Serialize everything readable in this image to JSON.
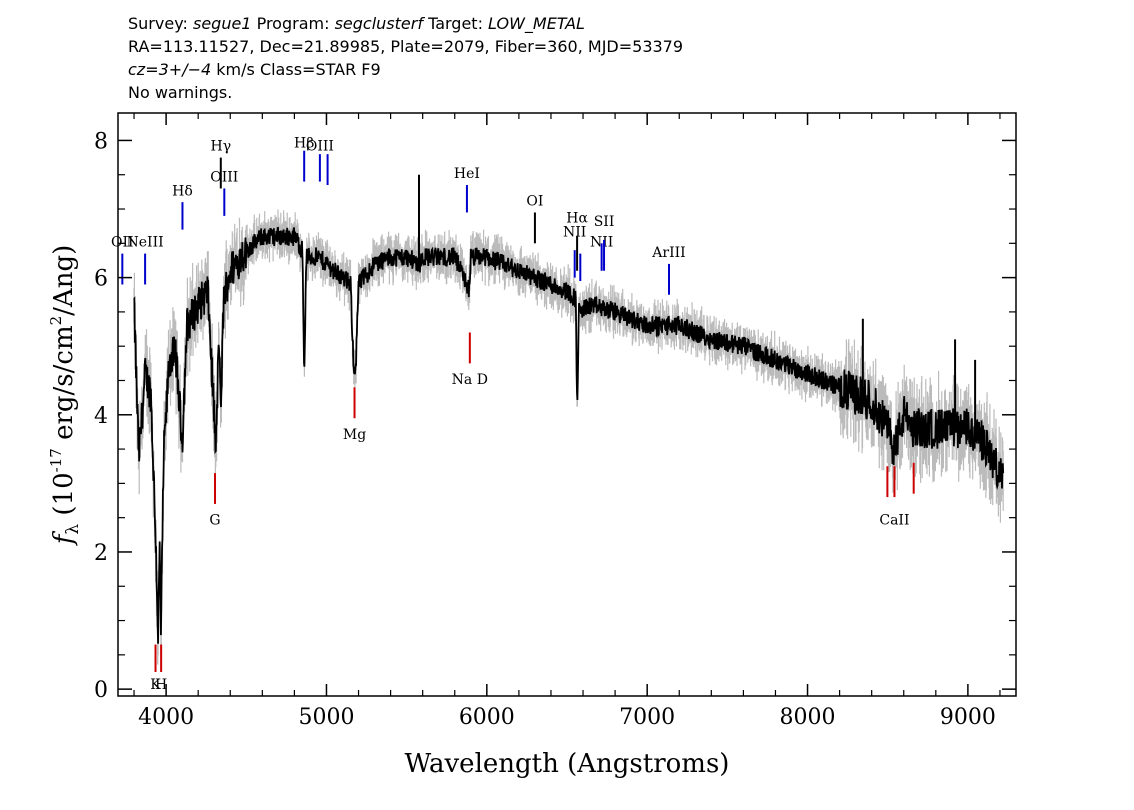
{
  "header": {
    "survey_label": "Survey:",
    "survey": "segue1",
    "program_label": "Program:",
    "program": "segclusterf",
    "target_label": "Target:",
    "target": "LOW_METAL",
    "line2": "RA=113.11527, Dec=21.89985, Plate=2079, Fiber=360, MJD=53379",
    "cz_label": "cz=3+/−4",
    "cz_unit": "km/s",
    "class_text": "Class=STAR F9",
    "warnings": "No warnings."
  },
  "chart_data": {
    "type": "line",
    "xlabel": "Wavelength (Angstroms)",
    "ylabel_pre": "f",
    "ylabel_sub": "λ",
    "ylabel_mid": " (10",
    "ylabel_exp": "-17",
    "ylabel_post": " erg/s/cm",
    "ylabel_exp2": "2",
    "ylabel_end": "/Ang)",
    "xlim": [
      3700,
      9300
    ],
    "ylim": [
      -0.1,
      8.4
    ],
    "x_ticks": [
      4000,
      5000,
      6000,
      7000,
      8000,
      9000
    ],
    "y_ticks": [
      0,
      2,
      4,
      6,
      8
    ],
    "continuum": [
      [
        3800,
        5.6
      ],
      [
        3830,
        3.4
      ],
      [
        3870,
        4.6
      ],
      [
        3905,
        4.3
      ],
      [
        3935,
        2.2
      ],
      [
        3950,
        0.8
      ],
      [
        3960,
        2.0
      ],
      [
        3968,
        0.8
      ],
      [
        3985,
        3.4
      ],
      [
        4020,
        4.8
      ],
      [
        4060,
        4.9
      ],
      [
        4101,
        3.6
      ],
      [
        4130,
        5.3
      ],
      [
        4200,
        5.6
      ],
      [
        4260,
        5.8
      ],
      [
        4300,
        4.0
      ],
      [
        4310,
        3.4
      ],
      [
        4330,
        5.2
      ],
      [
        4340,
        4.0
      ],
      [
        4360,
        5.7
      ],
      [
        4400,
        6.1
      ],
      [
        4500,
        6.4
      ],
      [
        4600,
        6.6
      ],
      [
        4700,
        6.6
      ],
      [
        4800,
        6.6
      ],
      [
        4850,
        6.4
      ],
      [
        4861,
        4.6
      ],
      [
        4875,
        6.3
      ],
      [
        4950,
        6.3
      ],
      [
        5050,
        6.1
      ],
      [
        5150,
        5.9
      ],
      [
        5170,
        4.7
      ],
      [
        5183,
        4.7
      ],
      [
        5200,
        5.9
      ],
      [
        5300,
        6.2
      ],
      [
        5400,
        6.3
      ],
      [
        5500,
        6.3
      ],
      [
        5580,
        6.2
      ],
      [
        5600,
        6.3
      ],
      [
        5700,
        6.3
      ],
      [
        5800,
        6.3
      ],
      [
        5893,
        5.8
      ],
      [
        5900,
        6.3
      ],
      [
        6000,
        6.3
      ],
      [
        6100,
        6.2
      ],
      [
        6200,
        6.1
      ],
      [
        6300,
        6.0
      ],
      [
        6400,
        5.9
      ],
      [
        6500,
        5.8
      ],
      [
        6555,
        5.7
      ],
      [
        6563,
        4.1
      ],
      [
        6575,
        5.5
      ],
      [
        6650,
        5.6
      ],
      [
        6800,
        5.5
      ],
      [
        7000,
        5.3
      ],
      [
        7200,
        5.3
      ],
      [
        7400,
        5.1
      ],
      [
        7600,
        5.0
      ],
      [
        7800,
        4.8
      ],
      [
        8000,
        4.6
      ],
      [
        8200,
        4.4
      ],
      [
        8400,
        4.2
      ],
      [
        8498,
        3.8
      ],
      [
        8542,
        3.5
      ],
      [
        8600,
        4.0
      ],
      [
        8662,
        3.8
      ],
      [
        8800,
        3.8
      ],
      [
        9000,
        3.8
      ],
      [
        9100,
        3.6
      ],
      [
        9220,
        3.0
      ]
    ],
    "spikes": [
      {
        "x": 5577,
        "y1": 6.1,
        "y2": 7.5
      },
      {
        "x": 8345,
        "y1": 4.3,
        "y2": 5.4
      },
      {
        "x": 8920,
        "y1": 3.8,
        "y2": 5.1
      },
      {
        "x": 9045,
        "y1": 3.6,
        "y2": 4.8
      }
    ],
    "emission_lines": [
      {
        "label": "OII",
        "x": 3727,
        "y1": 5.9,
        "y2": 6.35,
        "color": "#0000cc",
        "ly": 6.45
      },
      {
        "label": "NeIII",
        "x": 3869,
        "y1": 5.9,
        "y2": 6.35,
        "color": "#0000cc",
        "ly": 6.45
      },
      {
        "label": "Hδ",
        "x": 4102,
        "y1": 6.7,
        "y2": 7.1,
        "color": "#0000cc",
        "ly": 7.2
      },
      {
        "label": "Hγ",
        "x": 4341,
        "y1": 7.3,
        "y2": 7.75,
        "color": "#000000",
        "ly": 7.85
      },
      {
        "label": "OIII",
        "x": 4363,
        "y1": 6.9,
        "y2": 7.3,
        "color": "#0000cc",
        "ly": 7.4
      },
      {
        "label": "Hβ",
        "x": 4861,
        "y1": 7.4,
        "y2": 7.85,
        "color": "#0000cc",
        "ly": 7.9
      },
      {
        "label": "OIII",
        "x": 4959,
        "y1": 7.4,
        "y2": 7.8,
        "color": "#0000cc",
        "ly": 7.85
      },
      {
        "label": "",
        "x": 5007,
        "y1": 7.35,
        "y2": 7.8,
        "color": "#0000cc",
        "ly": 7.85
      },
      {
        "label": "HeI",
        "x": 5876,
        "y1": 6.95,
        "y2": 7.35,
        "color": "#0000cc",
        "ly": 7.45
      },
      {
        "label": "OI",
        "x": 6300,
        "y1": 6.5,
        "y2": 6.95,
        "color": "#000000",
        "ly": 7.05
      },
      {
        "label": "NII",
        "x": 6548,
        "y1": 6.0,
        "y2": 6.4,
        "color": "#0000cc",
        "ly": 6.6
      },
      {
        "label": "Hα",
        "x": 6563,
        "y1": 6.1,
        "y2": 6.6,
        "color": "#000000",
        "ly": 6.8
      },
      {
        "label": "",
        "x": 6583,
        "y1": 5.95,
        "y2": 6.35,
        "color": "#0000cc",
        "ly": 6.4
      },
      {
        "label": "NII",
        "x": 6716,
        "y1": 6.1,
        "y2": 6.5,
        "color": "#0000cc",
        "ly": 6.45
      },
      {
        "label": "SII",
        "x": 6731,
        "y1": 6.1,
        "y2": 6.55,
        "color": "#0000cc",
        "ly": 6.75
      },
      {
        "label": "ArIII",
        "x": 7136,
        "y1": 5.75,
        "y2": 6.2,
        "color": "#0000cc",
        "ly": 6.3
      }
    ],
    "absorption_lines": [
      {
        "label": "",
        "x": 3934,
        "y1": 0.25,
        "y2": 0.65,
        "color": "#cc0000",
        "ly": 0.0
      },
      {
        "label": "",
        "x": 3969,
        "y1": 0.25,
        "y2": 0.65,
        "color": "#cc0000",
        "ly": 0.0
      },
      {
        "label": "K",
        "x": 3934,
        "y1": 0.0,
        "y2": 0.0,
        "color": "#cc0000",
        "ly": 0.0
      },
      {
        "label": "H",
        "x": 3969,
        "y1": 0.0,
        "y2": 0.0,
        "color": "#cc0000",
        "ly": 0.0
      },
      {
        "label": "G",
        "x": 4305,
        "y1": 2.7,
        "y2": 3.15,
        "color": "#cc0000",
        "ly": 2.4
      },
      {
        "label": "Mg",
        "x": 5175,
        "y1": 3.95,
        "y2": 4.4,
        "color": "#cc0000",
        "ly": 3.65
      },
      {
        "label": "Na D",
        "x": 5894,
        "y1": 4.75,
        "y2": 5.2,
        "color": "#cc0000",
        "ly": 4.45
      },
      {
        "label": "",
        "x": 8498,
        "y1": 2.8,
        "y2": 3.25,
        "color": "#cc0000",
        "ly": 2.4
      },
      {
        "label": "CaII",
        "x": 8542,
        "y1": 2.8,
        "y2": 3.25,
        "color": "#cc0000",
        "ly": 2.4
      },
      {
        "label": "",
        "x": 8662,
        "y1": 2.85,
        "y2": 3.3,
        "color": "#cc0000",
        "ly": 2.4
      }
    ],
    "colors": {
      "flux": "#000000",
      "error_band": "#bbbbbb",
      "emission": "#0000cc",
      "absorption": "#cc0000"
    }
  }
}
